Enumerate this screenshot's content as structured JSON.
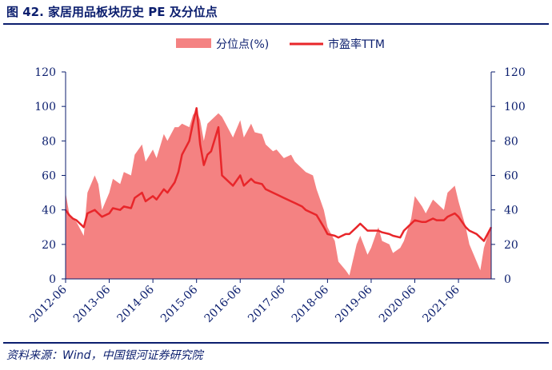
{
  "figure": {
    "title": "图 42. 家居用品板块历史 PE 及分位点",
    "source": "资料来源：Wind，中国银河证券研究院"
  },
  "chart_data": {
    "type": "area+line",
    "colors": {
      "area": "#f48282",
      "line": "#e8262a",
      "axis": "#0b1e6e"
    },
    "legend": [
      {
        "name": "分位点(%)",
        "kind": "area"
      },
      {
        "name": "市盈率TTM",
        "kind": "line"
      }
    ],
    "x_ticks": [
      "2012-06",
      "2013-06",
      "2014-06",
      "2015-06",
      "2016-06",
      "2017-06",
      "2018-06",
      "2019-06",
      "2020-06",
      "2021-06"
    ],
    "y_left": {
      "min": 0,
      "max": 120,
      "ticks": [
        0,
        20,
        40,
        60,
        80,
        100,
        120
      ]
    },
    "y_right": {
      "min": 0,
      "max": 120,
      "ticks": [
        0,
        20,
        40,
        60,
        80,
        100,
        120
      ]
    },
    "series": [
      {
        "name": "分位点(%)",
        "kind": "area",
        "x": [
          "2012-06",
          "2012-07",
          "2012-08",
          "2012-09",
          "2012-11",
          "2012-12",
          "2013-02",
          "2013-03",
          "2013-04",
          "2013-06",
          "2013-07",
          "2013-09",
          "2013-10",
          "2013-12",
          "2014-01",
          "2014-03",
          "2014-04",
          "2014-06",
          "2014-07",
          "2014-09",
          "2014-10",
          "2014-12",
          "2015-01",
          "2015-02",
          "2015-04",
          "2015-05",
          "2015-06",
          "2015-07",
          "2015-08",
          "2015-09",
          "2015-10",
          "2015-12",
          "2016-01",
          "2016-02",
          "2016-04",
          "2016-06",
          "2016-07",
          "2016-09",
          "2016-10",
          "2016-12",
          "2017-01",
          "2017-03",
          "2017-04",
          "2017-06",
          "2017-08",
          "2017-09",
          "2017-11",
          "2017-12",
          "2018-02",
          "2018-03",
          "2018-05",
          "2018-06",
          "2018-08",
          "2018-09",
          "2018-11",
          "2018-12",
          "2019-02",
          "2019-03",
          "2019-05",
          "2019-06",
          "2019-08",
          "2019-09",
          "2019-11",
          "2019-12",
          "2020-02",
          "2020-03",
          "2020-05",
          "2020-06",
          "2020-08",
          "2020-09",
          "2020-11",
          "2020-12",
          "2021-02",
          "2021-03",
          "2021-05",
          "2021-06",
          "2021-08",
          "2021-09",
          "2021-11",
          "2021-12",
          "2022-01",
          "2022-02",
          "2022-03"
        ],
        "values": [
          50,
          38,
          35,
          33,
          25,
          50,
          60,
          55,
          40,
          50,
          58,
          55,
          62,
          60,
          72,
          78,
          68,
          75,
          70,
          84,
          80,
          88,
          88,
          90,
          88,
          95,
          98,
          92,
          80,
          90,
          92,
          96,
          94,
          90,
          82,
          92,
          82,
          90,
          85,
          84,
          78,
          74,
          75,
          70,
          72,
          68,
          64,
          62,
          60,
          52,
          40,
          30,
          22,
          10,
          5,
          2,
          20,
          25,
          14,
          18,
          30,
          22,
          20,
          15,
          18,
          22,
          35,
          48,
          42,
          38,
          46,
          44,
          40,
          50,
          54,
          45,
          30,
          20,
          10,
          5,
          18,
          25,
          30
        ]
      },
      {
        "name": "市盈率TTM",
        "kind": "line",
        "x": [
          "2012-06",
          "2012-07",
          "2012-08",
          "2012-09",
          "2012-11",
          "2012-12",
          "2013-02",
          "2013-03",
          "2013-04",
          "2013-06",
          "2013-07",
          "2013-09",
          "2013-10",
          "2013-12",
          "2014-01",
          "2014-03",
          "2014-04",
          "2014-06",
          "2014-07",
          "2014-09",
          "2014-10",
          "2014-12",
          "2015-01",
          "2015-02",
          "2015-04",
          "2015-05",
          "2015-06",
          "2015-07",
          "2015-08",
          "2015-09",
          "2015-10",
          "2015-12",
          "2016-01",
          "2016-02",
          "2016-04",
          "2016-06",
          "2016-07",
          "2016-09",
          "2016-10",
          "2016-12",
          "2017-01",
          "2017-03",
          "2017-04",
          "2017-06",
          "2017-08",
          "2017-09",
          "2017-11",
          "2017-12",
          "2018-02",
          "2018-03",
          "2018-05",
          "2018-06",
          "2018-08",
          "2018-09",
          "2018-11",
          "2018-12",
          "2019-02",
          "2019-03",
          "2019-05",
          "2019-06",
          "2019-08",
          "2019-09",
          "2019-11",
          "2019-12",
          "2020-02",
          "2020-03",
          "2020-05",
          "2020-06",
          "2020-08",
          "2020-09",
          "2020-11",
          "2020-12",
          "2021-02",
          "2021-03",
          "2021-05",
          "2021-06",
          "2021-08",
          "2021-09",
          "2021-11",
          "2021-12",
          "2022-01",
          "2022-02",
          "2022-03"
        ],
        "values": [
          40,
          37,
          35,
          34,
          30,
          38,
          40,
          38,
          36,
          38,
          41,
          40,
          42,
          41,
          47,
          50,
          45,
          48,
          46,
          52,
          50,
          56,
          62,
          72,
          80,
          90,
          99,
          78,
          66,
          72,
          74,
          88,
          60,
          58,
          54,
          60,
          54,
          58,
          56,
          55,
          52,
          50,
          49,
          47,
          45,
          44,
          42,
          40,
          38,
          37,
          30,
          26,
          25,
          24,
          26,
          26,
          30,
          32,
          28,
          28,
          28,
          27,
          26,
          25,
          24,
          28,
          32,
          34,
          33,
          33,
          35,
          34,
          34,
          36,
          38,
          36,
          30,
          28,
          26,
          24,
          22,
          26,
          30
        ]
      }
    ]
  }
}
